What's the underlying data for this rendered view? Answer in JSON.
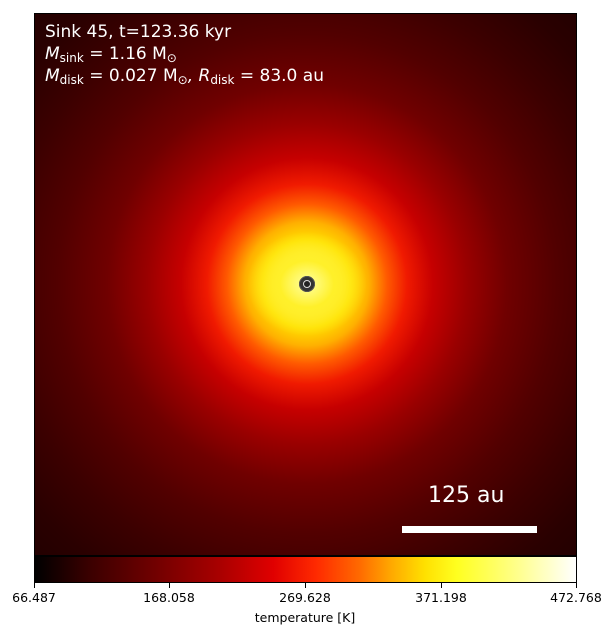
{
  "annotations": {
    "title": "Sink 45, t=123.36 kyr",
    "m_sink_label": "M",
    "m_sink_sub": "sink",
    "m_sink_value": " = 1.16 M",
    "m_sink_unit_sub": "⊙",
    "m_disk_label": "M",
    "m_disk_sub": "disk",
    "m_disk_value": " = 0.027 M",
    "m_disk_unit_sub": "⊙",
    "r_disk_label": ", R",
    "r_disk_sub": "disk",
    "r_disk_value": " = 83.0 au"
  },
  "scalebar": {
    "label": "125 au"
  },
  "colorbar": {
    "label": "temperature [K]",
    "ticks": [
      "66.487",
      "168.058",
      "269.628",
      "371.198",
      "472.768"
    ],
    "range": [
      66.487,
      472.768
    ],
    "colormap": "hot"
  },
  "colors": {
    "text_on_image": "#ffffff",
    "sink_marker": "#333333"
  }
}
